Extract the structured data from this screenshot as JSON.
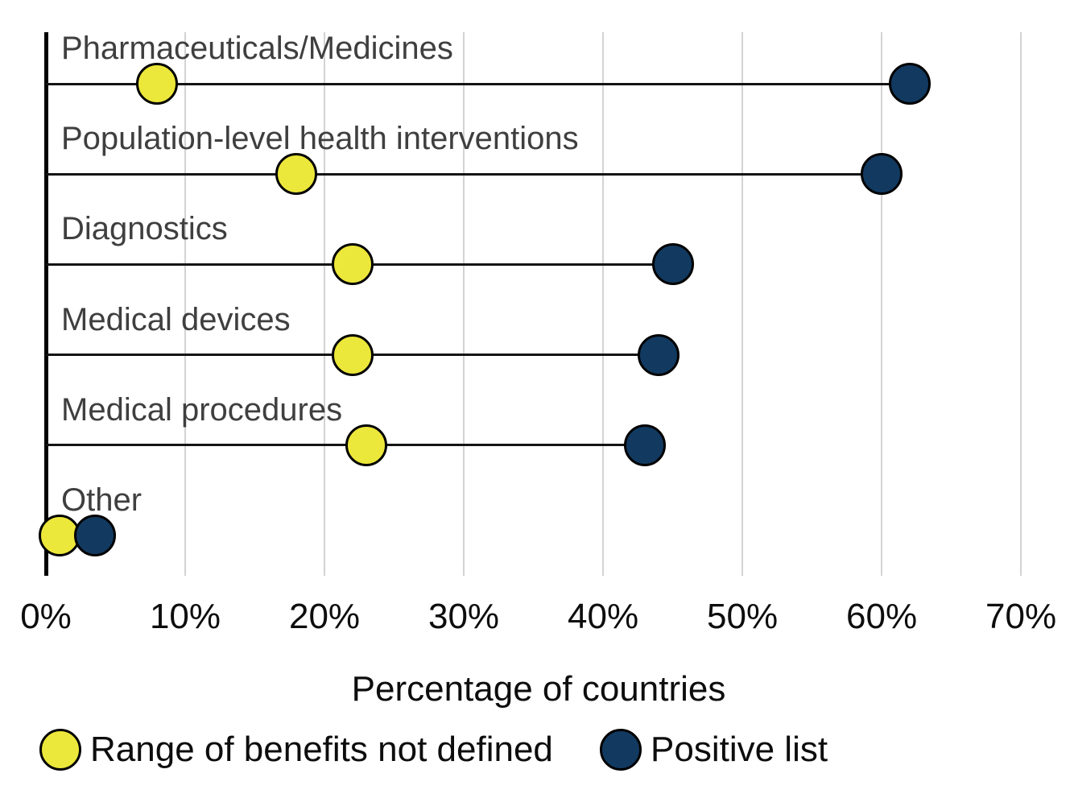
{
  "chart_data": {
    "type": "scatter",
    "variant": "dumbbell-dot-plot",
    "title": "",
    "xlabel": "Percentage of countries",
    "categories": [
      "Pharmaceuticals/Medicines",
      "Population-level health interventions",
      "Diagnostics",
      "Medical devices",
      "Medical procedures",
      "Other"
    ],
    "series": [
      {
        "name": "Range of benefits not defined",
        "color": "#ece73b",
        "values": [
          8,
          18,
          22,
          22,
          23,
          1
        ]
      },
      {
        "name": "Positive list",
        "color": "#123a61",
        "values": [
          62,
          60,
          45,
          44,
          43,
          3.5
        ]
      }
    ],
    "x_ticks": [
      {
        "value": 0,
        "label": "0%"
      },
      {
        "value": 10,
        "label": "10%"
      },
      {
        "value": 20,
        "label": "20%"
      },
      {
        "value": 30,
        "label": "30%"
      },
      {
        "value": 40,
        "label": "40%"
      },
      {
        "value": 50,
        "label": "50%"
      },
      {
        "value": 60,
        "label": "60%"
      },
      {
        "value": 70,
        "label": "70%"
      }
    ],
    "xlim": [
      0,
      73
    ],
    "grid": "vertical",
    "legend_position": "bottom"
  },
  "colors": {
    "background": "#ffffff",
    "gridline": "#d3d3d3",
    "stem": "#141414",
    "dot_outline": "#000000",
    "category_text": "#3f3f3f",
    "axis_text": "#0d0d0d"
  }
}
